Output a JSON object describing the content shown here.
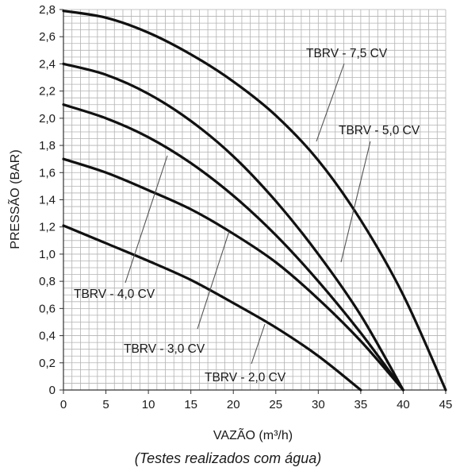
{
  "chart_data": {
    "type": "line",
    "title": "",
    "xlabel": "VAZÃO (m³/h)",
    "ylabel": "PRESSÃO (BAR)",
    "xlim": [
      0,
      45
    ],
    "ylim": [
      0,
      2.8
    ],
    "xticks": [
      0,
      5,
      10,
      15,
      20,
      25,
      30,
      35,
      40,
      45
    ],
    "xtick_labels": [
      "0",
      "5",
      "10",
      "15",
      "20",
      "25",
      "30",
      "35",
      "40",
      "45"
    ],
    "yticks": [
      0,
      0.2,
      0.4,
      0.6,
      0.8,
      1.0,
      1.2,
      1.4,
      1.6,
      1.8,
      2.0,
      2.2,
      2.4,
      2.6,
      2.8
    ],
    "ytick_labels": [
      "0",
      "0,2",
      "0,4",
      "0,6",
      "0,8",
      "1,0",
      "1,2",
      "1,4",
      "1,6",
      "1,8",
      "2,0",
      "2,2",
      "2,4",
      "2,6",
      "2,8"
    ],
    "grid": true,
    "series": [
      {
        "name": "TBRV - 7,5 CV",
        "x": [
          0,
          5,
          10,
          15,
          20,
          25,
          30,
          35,
          40,
          45
        ],
        "y": [
          2.79,
          2.74,
          2.63,
          2.47,
          2.27,
          2.02,
          1.69,
          1.25,
          0.7,
          0.0
        ]
      },
      {
        "name": "TBRV - 5,0 CV",
        "x": [
          0,
          5,
          10,
          15,
          20,
          25,
          30,
          35,
          40
        ],
        "y": [
          2.4,
          2.32,
          2.18,
          1.98,
          1.72,
          1.39,
          1.0,
          0.55,
          0.0
        ]
      },
      {
        "name": "TBRV - 4,0 CV",
        "x": [
          0,
          5,
          10,
          15,
          20,
          25,
          30,
          35,
          40
        ],
        "y": [
          2.1,
          2.0,
          1.86,
          1.67,
          1.43,
          1.14,
          0.8,
          0.42,
          0.0
        ]
      },
      {
        "name": "TBRV - 3,0 CV",
        "x": [
          0,
          5,
          10,
          15,
          20,
          25,
          30,
          35,
          40
        ],
        "y": [
          1.7,
          1.6,
          1.47,
          1.33,
          1.15,
          0.94,
          0.67,
          0.36,
          0.0
        ]
      },
      {
        "name": "TBRV - 2,0 CV",
        "x": [
          0,
          5,
          10,
          15,
          20,
          25,
          30,
          35
        ],
        "y": [
          1.21,
          1.08,
          0.95,
          0.81,
          0.64,
          0.46,
          0.25,
          0.0
        ]
      }
    ],
    "annotations": [
      "(Testes realizados com água)"
    ],
    "colors": {
      "curve": "#111111",
      "grid": "#b3b3b3",
      "leader": "#555555"
    }
  }
}
